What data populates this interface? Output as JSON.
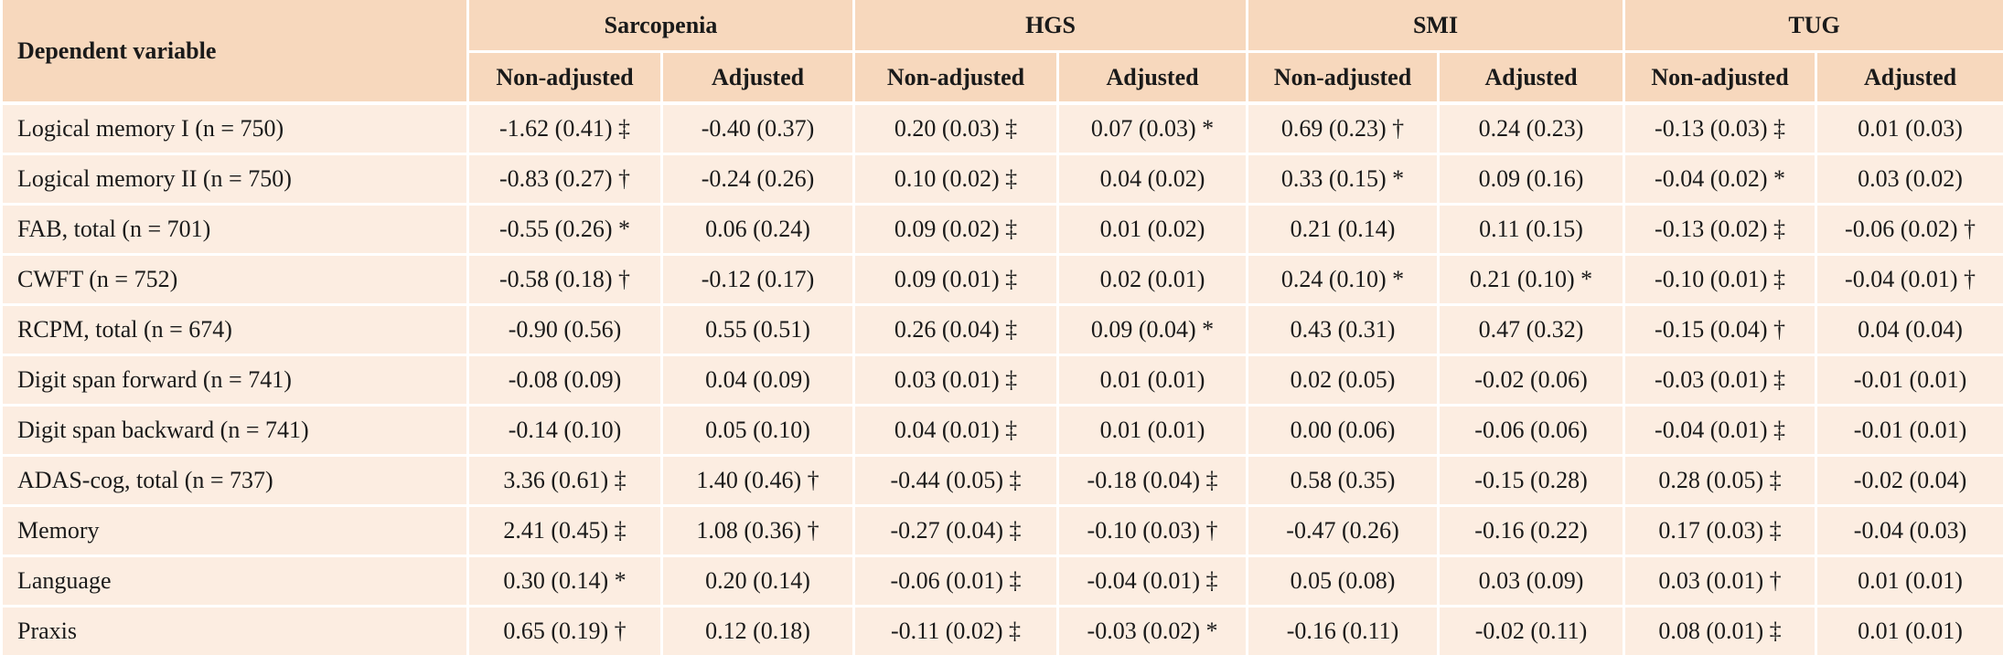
{
  "table": {
    "dep_header": "Dependent variable",
    "groups": [
      "Sarcopenia",
      "HGS",
      "SMI",
      "TUG"
    ],
    "sub_left": "Non-adjusted",
    "sub_right": "Adjusted",
    "rows": [
      {
        "label": "Logical memory I (n = 750)",
        "cells": [
          "-1.62 (0.41) ‡",
          "-0.40 (0.37)",
          "0.20 (0.03) ‡",
          "0.07 (0.03) *",
          "0.69 (0.23) †",
          "0.24 (0.23)",
          "-0.13 (0.03) ‡",
          "0.01 (0.03)"
        ]
      },
      {
        "label": "Logical memory II (n = 750)",
        "cells": [
          "-0.83 (0.27) †",
          "-0.24 (0.26)",
          "0.10 (0.02) ‡",
          "0.04 (0.02)",
          "0.33 (0.15) *",
          "0.09 (0.16)",
          "-0.04 (0.02) *",
          "0.03 (0.02)"
        ]
      },
      {
        "label": "FAB, total (n = 701)",
        "cells": [
          "-0.55 (0.26) *",
          "0.06 (0.24)",
          "0.09 (0.02) ‡",
          "0.01 (0.02)",
          "0.21 (0.14)",
          "0.11 (0.15)",
          "-0.13 (0.02) ‡",
          "-0.06 (0.02) †"
        ]
      },
      {
        "label": "CWFT (n = 752)",
        "cells": [
          "-0.58 (0.18) †",
          "-0.12 (0.17)",
          "0.09 (0.01) ‡",
          "0.02 (0.01)",
          "0.24 (0.10) *",
          "0.21 (0.10) *",
          "-0.10 (0.01) ‡",
          "-0.04 (0.01) †"
        ]
      },
      {
        "label": "RCPM, total (n = 674)",
        "cells": [
          "-0.90 (0.56)",
          "0.55 (0.51)",
          "0.26 (0.04) ‡",
          "0.09 (0.04) *",
          "0.43 (0.31)",
          "0.47 (0.32)",
          "-0.15 (0.04) †",
          "0.04 (0.04)"
        ]
      },
      {
        "label": "Digit span forward (n = 741)",
        "cells": [
          "-0.08 (0.09)",
          "0.04 (0.09)",
          "0.03 (0.01) ‡",
          "0.01 (0.01)",
          "0.02 (0.05)",
          "-0.02 (0.06)",
          "-0.03 (0.01) ‡",
          "-0.01 (0.01)"
        ]
      },
      {
        "label": "Digit span backward (n = 741)",
        "cells": [
          "-0.14 (0.10)",
          "0.05 (0.10)",
          "0.04 (0.01) ‡",
          "0.01 (0.01)",
          "0.00 (0.06)",
          "-0.06 (0.06)",
          "-0.04 (0.01) ‡",
          "-0.01 (0.01)"
        ]
      },
      {
        "label": "ADAS-cog, total (n = 737)",
        "cells": [
          "3.36 (0.61) ‡",
          "1.40 (0.46) †",
          "-0.44 (0.05) ‡",
          "-0.18 (0.04) ‡",
          "0.58 (0.35)",
          "-0.15 (0.28)",
          "0.28 (0.05) ‡",
          "-0.02 (0.04)"
        ]
      },
      {
        "label": "Memory",
        "cells": [
          "2.41 (0.45) ‡",
          "1.08 (0.36) †",
          "-0.27 (0.04) ‡",
          "-0.10 (0.03) †",
          "-0.47 (0.26)",
          "-0.16 (0.22)",
          "0.17 (0.03) ‡",
          "-0.04 (0.03)"
        ]
      },
      {
        "label": "Language",
        "cells": [
          "0.30 (0.14) *",
          "0.20 (0.14)",
          "-0.06 (0.01) ‡",
          "-0.04 (0.01) ‡",
          "0.05 (0.08)",
          "0.03 (0.09)",
          "0.03 (0.01) †",
          "0.01 (0.01)"
        ]
      },
      {
        "label": "Praxis",
        "cells": [
          "0.65 (0.19) †",
          "0.12 (0.18)",
          "-0.11 (0.02) ‡",
          "-0.03 (0.02) *",
          "-0.16 (0.11)",
          "-0.02 (0.11)",
          "0.08 (0.01) ‡",
          "0.01 (0.01)"
        ]
      }
    ]
  }
}
